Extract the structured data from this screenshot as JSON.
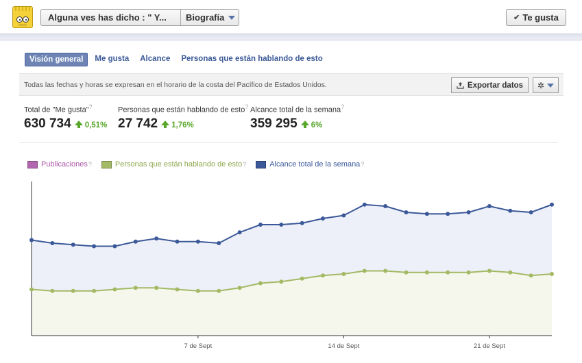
{
  "header": {
    "page_name": "Alguna ves has dicho : \" Y...",
    "view_label": "Biografía",
    "like_label": "Te gusta"
  },
  "tabs": [
    {
      "label": "Visión general",
      "active": true
    },
    {
      "label": "Me gusta",
      "active": false
    },
    {
      "label": "Alcance",
      "active": false
    },
    {
      "label": "Personas que están hablando de esto",
      "active": false
    }
  ],
  "notice": {
    "text": "Todas las fechas y horas se expresan en el horario de la costa del Pacífico de Estados Unidos.",
    "export_label": "Exportar datos",
    "gear_icon": "gear-icon"
  },
  "stats": [
    {
      "label": "Total de \"Me gusta\"",
      "value": "630 734",
      "change": "0,51%"
    },
    {
      "label": "Personas que están hablando de esto",
      "value": "27 742",
      "change": "1,76%"
    },
    {
      "label": "Alcance total de la semana",
      "value": "359 295",
      "change": "6%"
    }
  ],
  "colors": {
    "publicaciones": "#a855a5",
    "hablando": "#a3b964",
    "alcance": "#3b5998",
    "positive": "#59a62b"
  },
  "chart_data": {
    "type": "line",
    "legend": [
      "Publicaciones",
      "Personas que están hablando de esto",
      "Alcance total de la semana"
    ],
    "x_ticks": [
      "7 de Sept",
      "14 de Sept",
      "21 de Sept"
    ],
    "series": [
      {
        "name": "Alcance total de la semana",
        "values": [
          0.62,
          0.6,
          0.59,
          0.58,
          0.58,
          0.61,
          0.63,
          0.61,
          0.61,
          0.6,
          0.67,
          0.72,
          0.72,
          0.73,
          0.76,
          0.78,
          0.85,
          0.84,
          0.8,
          0.79,
          0.79,
          0.8,
          0.84,
          0.81,
          0.8,
          0.85
        ]
      },
      {
        "name": "Personas que están hablando de esto",
        "values": [
          0.3,
          0.29,
          0.29,
          0.29,
          0.3,
          0.31,
          0.31,
          0.3,
          0.29,
          0.29,
          0.31,
          0.34,
          0.35,
          0.37,
          0.39,
          0.4,
          0.42,
          0.42,
          0.41,
          0.41,
          0.41,
          0.41,
          0.42,
          0.41,
          0.39,
          0.4
        ]
      }
    ]
  }
}
